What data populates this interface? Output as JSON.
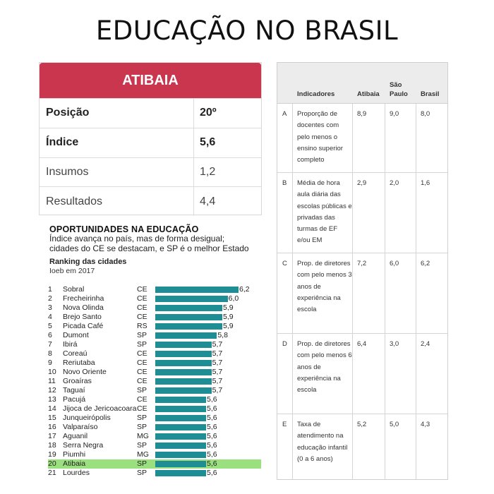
{
  "title": "EDUCAÇÃO NO BRASIL",
  "card": {
    "header": "ATIBAIA",
    "rows": [
      {
        "label": "Posição",
        "value": "20º"
      },
      {
        "label": "Índice",
        "value": "5,6"
      },
      {
        "label": "Insumos",
        "value": "1,2"
      },
      {
        "label": "Resultados",
        "value": "4,4"
      }
    ]
  },
  "ranking": {
    "title": "OPORTUNIDADES NA EDUCAÇÃO",
    "subtitle_lines": [
      "Índice avança no país, mas de forma desigual;",
      "cidades do CE se destacam, e SP é o melhor Estado"
    ],
    "heading": "Ranking das cidades",
    "year": "Ioeb em 2017",
    "highlight_rank": "20",
    "rows": [
      {
        "rank": "1",
        "city": "Sobral",
        "state": "CE",
        "value": 6.2,
        "label": "6,2"
      },
      {
        "rank": "2",
        "city": "Frecheirinha",
        "state": "CE",
        "value": 6.0,
        "label": "6,0"
      },
      {
        "rank": "3",
        "city": "Nova Olinda",
        "state": "CE",
        "value": 5.9,
        "label": "5,9"
      },
      {
        "rank": "4",
        "city": "Brejo Santo",
        "state": "CE",
        "value": 5.9,
        "label": "5,9"
      },
      {
        "rank": "5",
        "city": "Picada Café",
        "state": "RS",
        "value": 5.9,
        "label": "5,9"
      },
      {
        "rank": "6",
        "city": "Dumont",
        "state": "SP",
        "value": 5.8,
        "label": "5,8"
      },
      {
        "rank": "7",
        "city": "Ibirá",
        "state": "SP",
        "value": 5.7,
        "label": "5,7"
      },
      {
        "rank": "8",
        "city": "Coreaú",
        "state": "CE",
        "value": 5.7,
        "label": "5,7"
      },
      {
        "rank": "9",
        "city": "Reriutaba",
        "state": "CE",
        "value": 5.7,
        "label": "5,7"
      },
      {
        "rank": "10",
        "city": "Novo Oriente",
        "state": "CE",
        "value": 5.7,
        "label": "5,7"
      },
      {
        "rank": "11",
        "city": "Groaíras",
        "state": "CE",
        "value": 5.7,
        "label": "5,7"
      },
      {
        "rank": "12",
        "city": "Taguaí",
        "state": "SP",
        "value": 5.7,
        "label": "5,7"
      },
      {
        "rank": "13",
        "city": "Pacujá",
        "state": "CE",
        "value": 5.6,
        "label": "5,6"
      },
      {
        "rank": "14",
        "city": "Jijoca de Jericoacoara",
        "state": "CE",
        "value": 5.6,
        "label": "5,6"
      },
      {
        "rank": "15",
        "city": "Junqueirópolis",
        "state": "SP",
        "value": 5.6,
        "label": "5,6"
      },
      {
        "rank": "16",
        "city": "Valparaíso",
        "state": "SP",
        "value": 5.6,
        "label": "5,6"
      },
      {
        "rank": "17",
        "city": "Aguanil",
        "state": "MG",
        "value": 5.6,
        "label": "5,6"
      },
      {
        "rank": "18",
        "city": "Serra Negra",
        "state": "SP",
        "value": 5.6,
        "label": "5,6"
      },
      {
        "rank": "19",
        "city": "Piumhi",
        "state": "MG",
        "value": 5.6,
        "label": "5,6"
      },
      {
        "rank": "20",
        "city": "Atibaia",
        "state": "SP",
        "value": 5.6,
        "label": "5,6"
      },
      {
        "rank": "21",
        "city": "Lourdes",
        "state": "SP",
        "value": 5.6,
        "label": "5,6"
      }
    ]
  },
  "indicators": {
    "headers": {
      "letter": "",
      "indicator": "Indicadores",
      "atibaia": "Atibaia",
      "sao_paulo": "São Paulo",
      "brasil": "Brasil"
    },
    "rows": [
      {
        "letter": "A",
        "text": "Proporção de docentes com pelo menos o ensino superior completo",
        "atibaia": "8,9",
        "sao_paulo": "9,0",
        "brasil": "8,0"
      },
      {
        "letter": "B",
        "text": "Média de hora aula diária das escolas públicas e privadas das turmas de EF e/ou EM",
        "atibaia": "2,9",
        "sao_paulo": "2,0",
        "brasil": "1,6"
      },
      {
        "letter": "C",
        "text": "Prop. de diretores com pelo menos 3 anos de experiência na escola",
        "atibaia": "7,2",
        "sao_paulo": "6,0",
        "brasil": "6,2"
      },
      {
        "letter": "D",
        "text": "Prop. de diretores com pelo menos 6 anos de experiência na escola",
        "atibaia": "6,4",
        "sao_paulo": "3,0",
        "brasil": "2,4"
      },
      {
        "letter": "E",
        "text": "Taxa de atendimento na educação infantil (0 a 6 anos)",
        "atibaia": "5,2",
        "sao_paulo": "5,0",
        "brasil": "4,3"
      }
    ]
  },
  "colors": {
    "accent": "#c9364e",
    "bar": "#1f8e94",
    "highlight": "#9ae07e"
  }
}
